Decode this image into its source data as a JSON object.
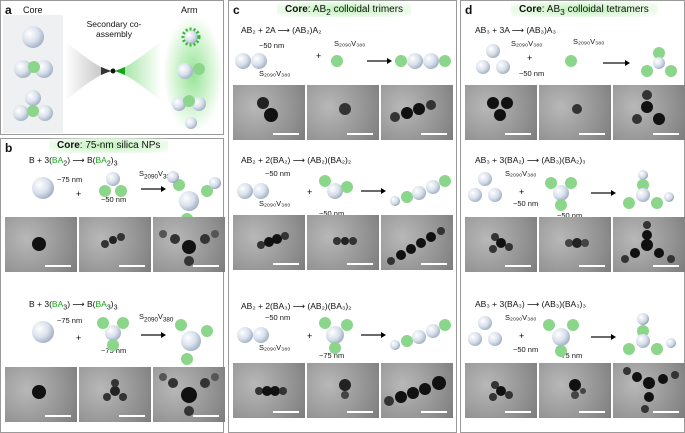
{
  "panels": {
    "a": {
      "label": "a",
      "core": "Core",
      "arm": "Arm",
      "center_text": "Secondary co-assembly"
    },
    "b": {
      "label": "b",
      "title_bold": "Core",
      "title_rest": ": 75-nm silica NPs",
      "rows": [
        {
          "eq_pre": "B + 3(",
          "eq_green": "BA",
          "eq_sub": "2",
          "eq_mid": ")",
          "eq_arrow": "⟶",
          "eq_post": "B(",
          "eq_green2": "BA",
          "eq_sub2": "2",
          "eq_end": ")",
          "eq_end_sub": "3",
          "ann1": "~75 nm",
          "ann2": "~50 nm",
          "ann3": "S",
          "ann3_sub": "2090",
          "ann3_b": "V",
          "ann3_sub_b": "380"
        },
        {
          "eq_pre": "B + 3(",
          "eq_green": "BA",
          "eq_sub": "3",
          "eq_mid": ")",
          "eq_arrow": "⟶",
          "eq_post": "B(",
          "eq_green2": "BA",
          "eq_sub2": "3",
          "eq_end": ")",
          "eq_end_sub": "3",
          "ann1": "~75 nm",
          "ann2": "~75 nm",
          "ann3": "S",
          "ann3_sub": "2090",
          "ann3_b": "V",
          "ann3_sub_b": "380"
        }
      ]
    },
    "c": {
      "label": "c",
      "title_bold": "Core",
      "title_rest": ": AB",
      "title_sub": "2",
      "title_tail": " colloidal trimers",
      "rows": [
        {
          "eq": "AB₂ + 2A ⟶ (AB₂)A₂",
          "ann1": "~50 nm",
          "ann2": "S₂₀₉₀V₃₈₀",
          "ann3": "S₂₀₉₀V₃₈₀"
        },
        {
          "eq": "AB₂ + 2(BA₂) ⟶ (AB₂)(BA₂)₂",
          "ann1": "~50 nm",
          "ann2": "S₂₀₉₀V₃₈₀",
          "ann3": "~50 nm"
        },
        {
          "eq": "AB₂ + 2(BA₃) ⟶ (AB₂)(BA₃)₂",
          "ann1": "~50 nm",
          "ann2": "S₂₀₉₀V₃₈₀",
          "ann3": "~75 nm"
        }
      ]
    },
    "d": {
      "label": "d",
      "title_bold": "Core",
      "title_rest": ": AB",
      "title_sub": "3",
      "title_tail": " colloidal tetramers",
      "rows": [
        {
          "eq": "AB₃ + 3A ⟶ (AB₃)A₃",
          "ann1": "S₂₀₉₀V₃₈₀",
          "ann2": "~50 nm",
          "ann3": "S₂₀₉₀V₃₈₀"
        },
        {
          "eq": "AB₃ + 3(BA₂) ⟶ (AB₃)(BA₂)₃",
          "ann1": "S₂₀₉₀V₃₈₀",
          "ann2": "~50 nm",
          "ann3": "~50 nm"
        },
        {
          "eq": "AB₃ + 3(BA₃) ⟶ (AB₃)(BA₃)₃",
          "ann1": "S₂₀₉₀V₃₈₀",
          "ann2": "~50 nm",
          "ann3": "~75 nm"
        }
      ]
    }
  },
  "colors": {
    "green": "#16a516",
    "sphere": "#dfe6ef",
    "frame": "#9a9a9a"
  }
}
